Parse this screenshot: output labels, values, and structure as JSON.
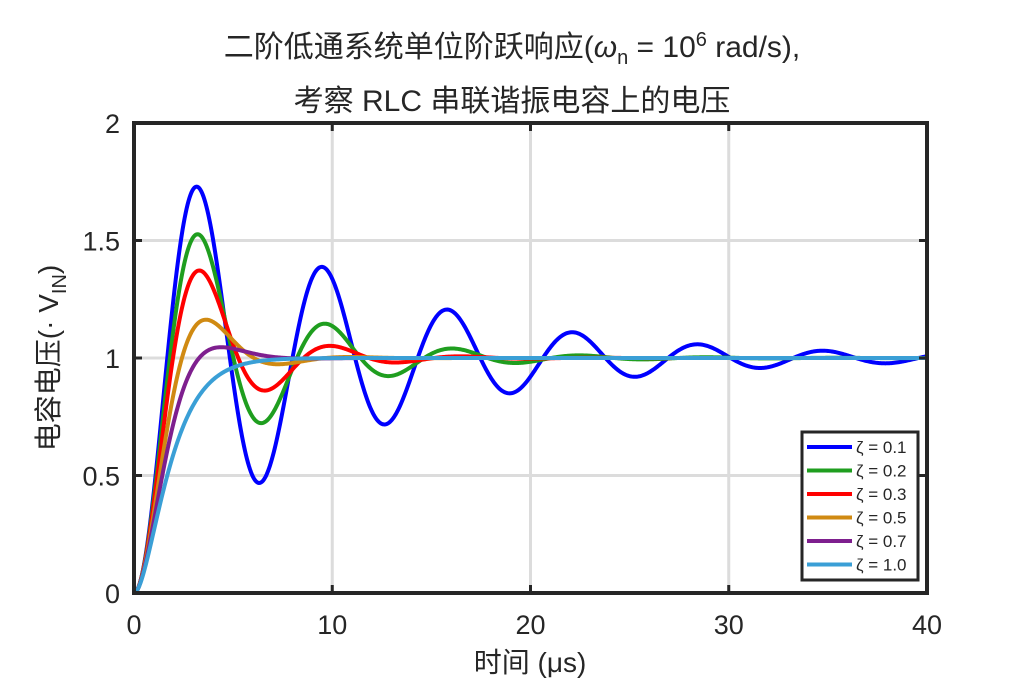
{
  "chart_data": {
    "type": "line",
    "title_line1_prefix": "二阶低通系统单位阶跃响应(",
    "title_omega": "ω",
    "title_omega_sub": "n",
    "title_eq": " = 10",
    "title_exp": "6",
    "title_suffix": " rad/s),",
    "title_line2": "考察 RLC 串联谐振电容上的电压",
    "xlabel": "时间 (μs)",
    "ylabel_prefix": "电容电压(· V",
    "ylabel_sub": "IN",
    "ylabel_suffix": ")",
    "xlim": [
      0,
      40
    ],
    "ylim": [
      0,
      2
    ],
    "xticks": [
      0,
      10,
      20,
      30,
      40
    ],
    "xtick_labels": [
      "0",
      "10",
      "20",
      "30",
      "40"
    ],
    "yticks": [
      0,
      0.5,
      1,
      1.5,
      2
    ],
    "ytick_labels": [
      "0",
      "0.5",
      "1",
      "1.5",
      "2"
    ],
    "grid": true,
    "legend_position": "lower right",
    "omega_n_rad_per_us": 1,
    "x": [
      0,
      2,
      4,
      6,
      8,
      10,
      12,
      14,
      16,
      18,
      20,
      22,
      24,
      26,
      28,
      30,
      32,
      34,
      36,
      38,
      40
    ],
    "series": [
      {
        "name": "ζ = 0.1",
        "zeta": 0.1,
        "color": "#0000ff",
        "values": [
          0,
          1.37,
          1.59,
          0.5,
          0.87,
          1.37,
          0.76,
          1.0,
          1.2,
          0.88,
          0.98,
          1.11,
          0.95,
          0.98,
          1.06,
          0.98,
          0.99,
          1.03,
          0.99,
          0.99,
          1.01
        ]
      },
      {
        "name": "ζ = 0.2",
        "zeta": 0.2,
        "color": "#1f9e1f",
        "values": [
          0,
          1.26,
          1.39,
          0.75,
          0.95,
          1.14,
          0.94,
          0.97,
          1.03,
          1.0,
          0.99,
          1.01,
          1.0,
          1.0,
          1.0,
          1.0,
          1.0,
          1.0,
          1.0,
          1.0,
          1.0
        ]
      },
      {
        "name": "ζ = 0.3",
        "zeta": 0.3,
        "color": "#ff0000",
        "values": [
          0,
          1.17,
          1.24,
          0.89,
          0.99,
          1.04,
          0.99,
          0.99,
          1.0,
          1.0,
          1.0,
          1.0,
          1.0,
          1.0,
          1.0,
          1.0,
          1.0,
          1.0,
          1.0,
          1.0,
          1.0
        ]
      },
      {
        "name": "ζ = 0.5",
        "zeta": 0.5,
        "color": "#d08a12",
        "values": [
          0,
          0.99,
          1.15,
          0.97,
          0.98,
          1.0,
          1.0,
          1.0,
          1.0,
          1.0,
          1.0,
          1.0,
          1.0,
          1.0,
          1.0,
          1.0,
          1.0,
          1.0,
          1.0,
          1.0,
          1.0
        ]
      },
      {
        "name": "ζ = 0.7",
        "zeta": 0.7,
        "color": "#7e1f8e",
        "values": [
          0,
          0.81,
          1.04,
          1.02,
          1.0,
          1.0,
          1.0,
          1.0,
          1.0,
          1.0,
          1.0,
          1.0,
          1.0,
          1.0,
          1.0,
          1.0,
          1.0,
          1.0,
          1.0,
          1.0,
          1.0
        ]
      },
      {
        "name": "ζ = 1.0",
        "zeta": 1.0,
        "color": "#3a9fd6",
        "values": [
          0,
          0.59,
          0.91,
          0.98,
          1.0,
          1.0,
          1.0,
          1.0,
          1.0,
          1.0,
          1.0,
          1.0,
          1.0,
          1.0,
          1.0,
          1.0,
          1.0,
          1.0,
          1.0,
          1.0,
          1.0
        ]
      }
    ]
  }
}
